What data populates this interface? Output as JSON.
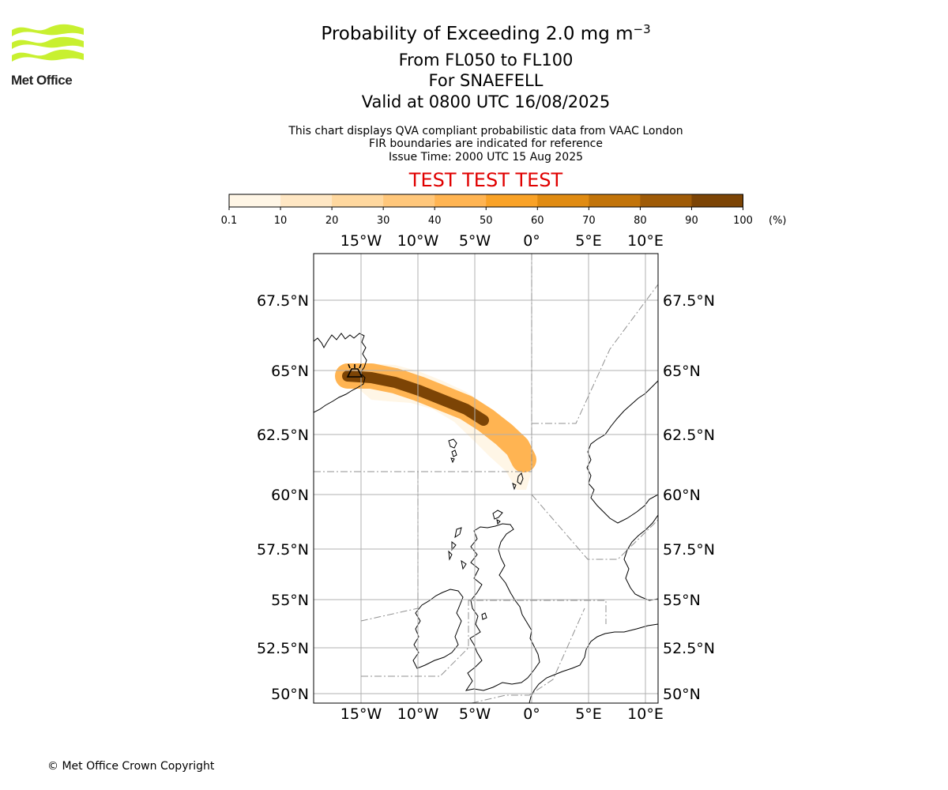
{
  "logo": {
    "text": "Met Office"
  },
  "title": {
    "main": "Probability of Exceeding 2.0 mg m",
    "unit_superscript": "−3"
  },
  "subtitle_lines": [
    "From FL050 to FL100",
    "For SNAEFELL",
    "Valid at 0800 UTC 16/08/2025"
  ],
  "description_lines": [
    "This chart displays QVA compliant probabilistic data from VAAC London",
    "FIR boundaries are indicated for reference",
    "Issue Time: 2000 UTC 15 Aug 2025"
  ],
  "test_banner": "TEST TEST TEST",
  "colorbar": {
    "ticks": [
      "0.1",
      "10",
      "20",
      "30",
      "40",
      "50",
      "60",
      "70",
      "80",
      "90",
      "100"
    ],
    "unit": "(%)",
    "colors": [
      "#fff6e6",
      "#ffe7c4",
      "#ffd89f",
      "#ffc77b",
      "#ffb452",
      "#f9a227",
      "#e08b12",
      "#c2740a",
      "#9f5b07",
      "#7c4405"
    ]
  },
  "map": {
    "lon_labels": [
      "15°W",
      "10°W",
      "5°W",
      "0°",
      "5°E",
      "10°E"
    ],
    "lat_labels": [
      "67.5°N",
      "65°N",
      "62.5°N",
      "60°N",
      "57.5°N",
      "55°N",
      "52.5°N",
      "50°N"
    ],
    "source_symbol": "volcano-icon",
    "colors": {
      "gridline": "#b0b0b0",
      "fir_boundary": "#909090",
      "coastline": "#000000"
    },
    "plume_band": [
      {
        "band": "0.1-10%",
        "color": "#fff6e6"
      },
      {
        "band": "30-60%",
        "color": "#ffb452"
      },
      {
        "band": "80-100%",
        "color": "#7c4405"
      }
    ]
  },
  "copyright": "© Met Office Crown Copyright"
}
